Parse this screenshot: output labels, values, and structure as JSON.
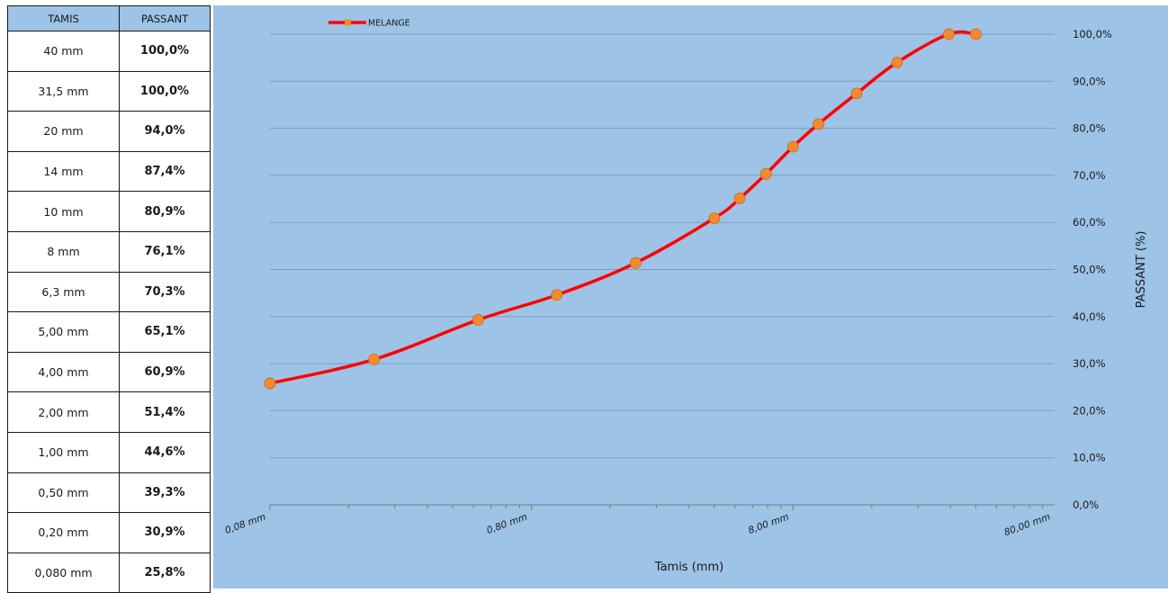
{
  "table": {
    "header": {
      "sieve": "TAMIS",
      "passing": "PASSANT"
    },
    "rows": [
      {
        "sieve": "40 mm",
        "passing": "100,0%"
      },
      {
        "sieve": "31,5 mm",
        "passing": "100,0%"
      },
      {
        "sieve": "20 mm",
        "passing": "94,0%"
      },
      {
        "sieve": "14 mm",
        "passing": "87,4%"
      },
      {
        "sieve": "10 mm",
        "passing": "80,9%"
      },
      {
        "sieve": "8 mm",
        "passing": "76,1%"
      },
      {
        "sieve": "6,3 mm",
        "passing": "70,3%"
      },
      {
        "sieve": "5,00 mm",
        "passing": "65,1%"
      },
      {
        "sieve": "4,00 mm",
        "passing": "60,9%"
      },
      {
        "sieve": "2,00 mm",
        "passing": "51,4%"
      },
      {
        "sieve": "1,00 mm",
        "passing": "44,6%"
      },
      {
        "sieve": "0,50 mm",
        "passing": "39,3%"
      },
      {
        "sieve": "0,20 mm",
        "passing": "30,9%"
      },
      {
        "sieve": "0,080 mm",
        "passing": "25,8%"
      }
    ]
  },
  "chart_data": {
    "type": "line",
    "xlabel": "Tamis (mm)",
    "ylabel": "PASSANT (%)",
    "x_scale": "log",
    "xlim": [
      0.08,
      80
    ],
    "ylim": [
      0,
      100
    ],
    "y_axis_side": "right",
    "grid": "horizontal",
    "legend": "top-left",
    "x_tick_values": [
      0.08,
      0.8,
      8,
      80
    ],
    "x_tick_labels": [
      "0,08 mm",
      "0,80 mm",
      "8,00 mm",
      "80,00 mm"
    ],
    "y_tick_values": [
      0,
      10,
      20,
      30,
      40,
      50,
      60,
      70,
      80,
      90,
      100
    ],
    "y_tick_labels": [
      "0,0%",
      "10,0%",
      "20,0%",
      "30,0%",
      "40,0%",
      "50,0%",
      "60,0%",
      "70,0%",
      "80,0%",
      "90,0%",
      "100,0%"
    ],
    "series": [
      {
        "name": "MELANGE",
        "line_color": "#ff0000",
        "marker_color": "#f28a2e",
        "x": [
          0.08,
          0.2,
          0.5,
          1,
          2,
          4,
          5,
          6.3,
          8,
          10,
          14,
          20,
          31.5,
          40
        ],
        "y": [
          25.8,
          30.9,
          39.3,
          44.6,
          51.4,
          60.9,
          65.1,
          70.3,
          76.1,
          80.9,
          87.4,
          94.0,
          100.0,
          100.0
        ]
      }
    ],
    "colors": {
      "background": "#9dc3e6",
      "gridline": "#7f9cb8"
    }
  }
}
